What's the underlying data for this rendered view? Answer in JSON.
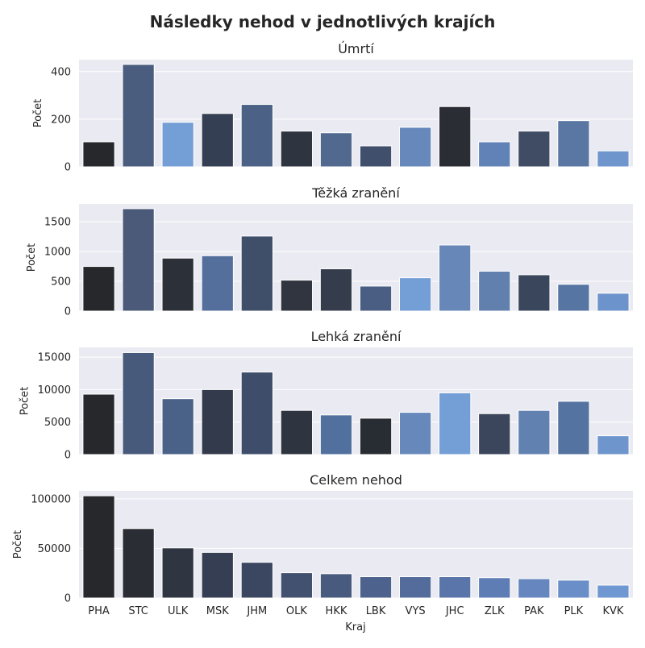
{
  "chart_data": {
    "type": "bar",
    "title": "Následky nehod v jednotlivých krajích",
    "xlabel": "Kraj",
    "ylabel": "Počet",
    "grid": true,
    "categories": [
      "PHA",
      "STC",
      "ULK",
      "MSK",
      "JHM",
      "OLK",
      "HKK",
      "LBK",
      "VYS",
      "JHC",
      "ZLK",
      "PAK",
      "PLK",
      "KVK"
    ],
    "panels": [
      {
        "title": "Úmrtí",
        "ylabel": "Počet",
        "ylim": [
          0,
          450
        ],
        "yticks": [
          0,
          200,
          400
        ],
        "values": [
          105,
          430,
          187,
          224,
          262,
          150,
          143,
          88,
          166,
          253,
          105,
          150,
          194,
          67
        ],
        "colors": [
          "#26282c",
          "#4a5d7f",
          "#749ed6",
          "#353f54",
          "#4b6286",
          "#2e3440",
          "#51698f",
          "#40506c",
          "#6688bb",
          "#2a2d33",
          "#6182b6",
          "#3f4c63",
          "#5a77a3",
          "#6e96cd"
        ]
      },
      {
        "title": "Těžká zranění",
        "ylabel": "Počet",
        "ylim": [
          0,
          1800
        ],
        "yticks": [
          0,
          500,
          1000,
          1500
        ],
        "values": [
          750,
          1720,
          890,
          930,
          1260,
          520,
          710,
          420,
          560,
          1110,
          670,
          610,
          450,
          300
        ],
        "colors": [
          "#26282c",
          "#4a5a78",
          "#2c3038",
          "#546f9c",
          "#3f4e69",
          "#31353f",
          "#353d4d",
          "#4a5d82",
          "#749ed6",
          "#6687b8",
          "#6180ae",
          "#3a465b",
          "#5675a3",
          "#6d93cc"
        ]
      },
      {
        "title": "Lehká zranění",
        "ylabel": "Počet",
        "ylim": [
          0,
          16500
        ],
        "yticks": [
          0,
          5000,
          10000,
          15000
        ],
        "values": [
          9300,
          15700,
          8600,
          10000,
          12700,
          6800,
          6100,
          5600,
          6500,
          9500,
          6300,
          6800,
          8200,
          2900
        ],
        "colors": [
          "#26282c",
          "#485a7b",
          "#4a6288",
          "#323a4b",
          "#3e4e6a",
          "#2e3440",
          "#51709e",
          "#282c33",
          "#6688bb",
          "#749ed6",
          "#3b465c",
          "#6182b1",
          "#5473a0",
          "#6e96cd"
        ]
      },
      {
        "title": "Celkem nehod",
        "ylabel": "Počet",
        "ylim": [
          0,
          108000
        ],
        "yticks": [
          0,
          50000,
          100000
        ],
        "values": [
          103000,
          70000,
          50500,
          46000,
          36000,
          25500,
          24500,
          21500,
          21500,
          21500,
          20500,
          19500,
          18000,
          13000
        ],
        "colors": [
          "#26282c",
          "#2a2d33",
          "#2f3541",
          "#353e52",
          "#3b4761",
          "#42516f",
          "#485a7e",
          "#4d638d",
          "#536c9b",
          "#5975a9",
          "#5e7db4",
          "#6586bf",
          "#6a8fc8",
          "#6f97d1"
        ]
      }
    ]
  }
}
